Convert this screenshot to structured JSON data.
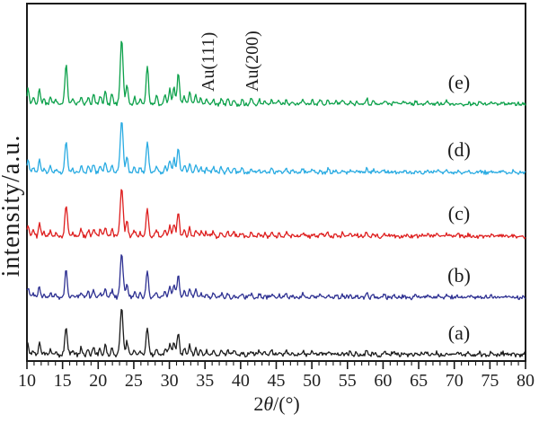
{
  "chart_data": {
    "type": "line",
    "chart_kind": "stacked XRD powder diffraction patterns",
    "title": "",
    "xlabel": "2θ/(°)",
    "xlabel_parts": [
      "2",
      "θ",
      "/(°)"
    ],
    "ylabel": "intensity/a.u.",
    "xlim": [
      10,
      80
    ],
    "x_major_ticks": [
      10,
      15,
      20,
      25,
      30,
      35,
      40,
      45,
      50,
      55,
      60,
      65,
      70,
      75,
      80
    ],
    "x_minor_tick_step": 1,
    "y_ticks": "none (arbitrary units)",
    "grid": false,
    "background": "#ffffff",
    "frame_color": "#1a1a1a",
    "annotations": [
      {
        "label": "Au(111)",
        "x": 38.2
      },
      {
        "label": "Au(200)",
        "x": 44.4
      }
    ],
    "series": [
      {
        "label": "(a)",
        "color": "#1c1c1c",
        "stack_position": "bottom"
      },
      {
        "label": "(b)",
        "color": "#2e3192",
        "stack_position": "2nd"
      },
      {
        "label": "(c)",
        "color": "#de1f1f",
        "stack_position": "3rd"
      },
      {
        "label": "(d)",
        "color": "#29abe2",
        "stack_position": "4th"
      },
      {
        "label": "(e)",
        "color": "#0da14b",
        "stack_position": "top"
      }
    ],
    "shared_peaks_2theta_relintensity": [
      [
        10.15,
        22
      ],
      [
        10.9,
        10
      ],
      [
        11.75,
        24
      ],
      [
        12.4,
        8
      ],
      [
        13.3,
        11
      ],
      [
        14.0,
        6
      ],
      [
        15.5,
        62
      ],
      [
        16.4,
        9
      ],
      [
        17.6,
        13
      ],
      [
        18.6,
        11
      ],
      [
        19.35,
        17
      ],
      [
        20.3,
        13
      ],
      [
        21.0,
        19
      ],
      [
        21.95,
        16
      ],
      [
        23.3,
        100
      ],
      [
        24.05,
        30
      ],
      [
        25.1,
        11
      ],
      [
        25.9,
        9
      ],
      [
        26.9,
        58
      ],
      [
        28.2,
        15
      ],
      [
        29.4,
        14
      ],
      [
        30.05,
        24
      ],
      [
        30.65,
        28
      ],
      [
        31.25,
        48
      ],
      [
        32.1,
        13
      ],
      [
        32.85,
        18
      ],
      [
        33.7,
        14
      ],
      [
        34.4,
        9
      ],
      [
        35.2,
        8
      ],
      [
        36.2,
        9
      ],
      [
        37.3,
        9
      ],
      [
        38.2,
        9
      ],
      [
        39.1,
        7
      ],
      [
        40.2,
        7
      ],
      [
        41.5,
        8
      ],
      [
        42.6,
        6
      ],
      [
        43.4,
        5
      ],
      [
        44.4,
        7
      ],
      [
        45.4,
        5
      ],
      [
        46.4,
        7
      ],
      [
        47.3,
        5
      ],
      [
        48.7,
        8
      ],
      [
        50.1,
        5
      ],
      [
        51.2,
        6
      ],
      [
        52.3,
        6
      ],
      [
        53.3,
        5
      ],
      [
        54.3,
        5
      ],
      [
        55.4,
        5
      ],
      [
        56.3,
        4
      ],
      [
        57.7,
        9
      ],
      [
        58.6,
        4
      ],
      [
        60.2,
        4
      ],
      [
        61.5,
        4
      ],
      [
        63.0,
        4
      ],
      [
        64.6,
        4
      ],
      [
        66.2,
        3
      ],
      [
        67.6,
        4
      ],
      [
        68.9,
        5
      ],
      [
        70.5,
        3
      ],
      [
        72.0,
        3
      ],
      [
        73.6,
        4
      ],
      [
        75.2,
        4
      ],
      [
        76.8,
        3
      ],
      [
        78.3,
        3
      ]
    ]
  }
}
